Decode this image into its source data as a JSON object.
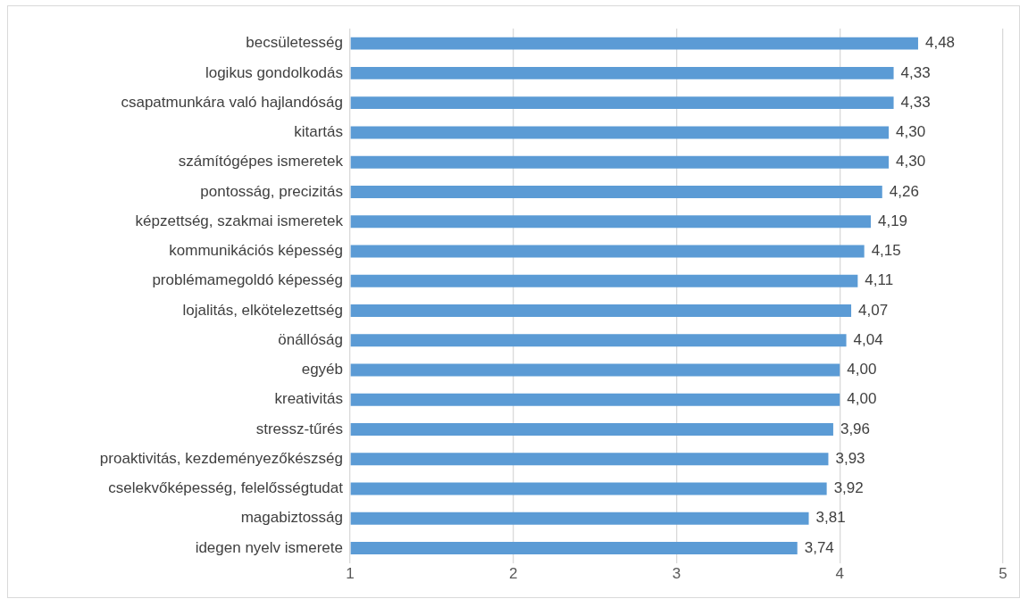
{
  "chart_data": {
    "type": "bar",
    "orientation": "horizontal",
    "categories": [
      "becsületesség",
      "logikus gondolkodás",
      "csapatmunkára való hajlandóság",
      "kitartás",
      "számítógépes ismeretek",
      "pontosság, precizitás",
      "képzettség, szakmai ismeretek",
      "kommunikációs képesség",
      "problémamegoldó képesség",
      "lojalitás, elkötelezettség",
      "önállóság",
      "egyéb",
      "kreativitás",
      "stressz-tűrés",
      "proaktivitás, kezdeményezőkészség",
      "cselekvőképesség, felelősségtudat",
      "magabiztosság",
      "idegen nyelv ismerete"
    ],
    "values": [
      4.48,
      4.33,
      4.33,
      4.3,
      4.3,
      4.26,
      4.19,
      4.15,
      4.11,
      4.07,
      4.04,
      4.0,
      4.0,
      3.96,
      3.93,
      3.92,
      3.81,
      3.74
    ],
    "value_labels": [
      "4,48",
      "4,33",
      "4,33",
      "4,30",
      "4,30",
      "4,26",
      "4,19",
      "4,15",
      "4,11",
      "4,07",
      "4,04",
      "4,00",
      "4,00",
      "3,96",
      "3,93",
      "3,92",
      "3,81",
      "3,74"
    ],
    "color": "#5b9bd5",
    "xlim": [
      1,
      5
    ],
    "xticks": [
      1,
      2,
      3,
      4,
      5
    ],
    "grid": "x",
    "legend": false
  }
}
